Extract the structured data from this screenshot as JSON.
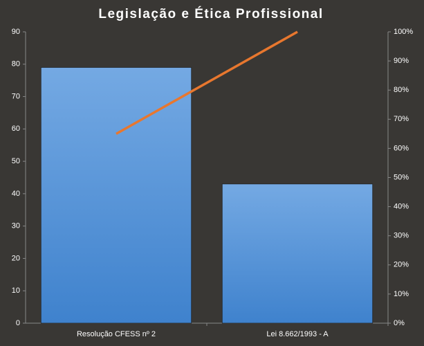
{
  "chart_data": {
    "type": "pareto",
    "title": "Legislação e Ética Profissional",
    "categories": [
      "Resolução CFESS nº 2",
      "Lei 8.662/1993 - A"
    ],
    "series": [
      {
        "type": "bar",
        "color": "#4f8fd6",
        "values": [
          79,
          43
        ]
      },
      {
        "type": "line",
        "color": "#e8772e",
        "axis": "y2",
        "values": [
          65,
          100
        ]
      }
    ],
    "ylim": [
      0,
      90
    ],
    "yticks": [
      0,
      10,
      20,
      30,
      40,
      50,
      60,
      70,
      80,
      90
    ],
    "y2lim": [
      0,
      100
    ],
    "y2ticks": [
      {
        "value": 0,
        "label": "0%"
      },
      {
        "value": 10,
        "label": "10%"
      },
      {
        "value": 20,
        "label": "20%"
      },
      {
        "value": 30,
        "label": "30%"
      },
      {
        "value": 40,
        "label": "40%"
      },
      {
        "value": 50,
        "label": "50%"
      },
      {
        "value": 60,
        "label": "60%"
      },
      {
        "value": 70,
        "label": "70%"
      },
      {
        "value": 80,
        "label": "80%"
      },
      {
        "value": 90,
        "label": "90%"
      },
      {
        "value": 100,
        "label": "100%"
      }
    ],
    "grid": false
  }
}
